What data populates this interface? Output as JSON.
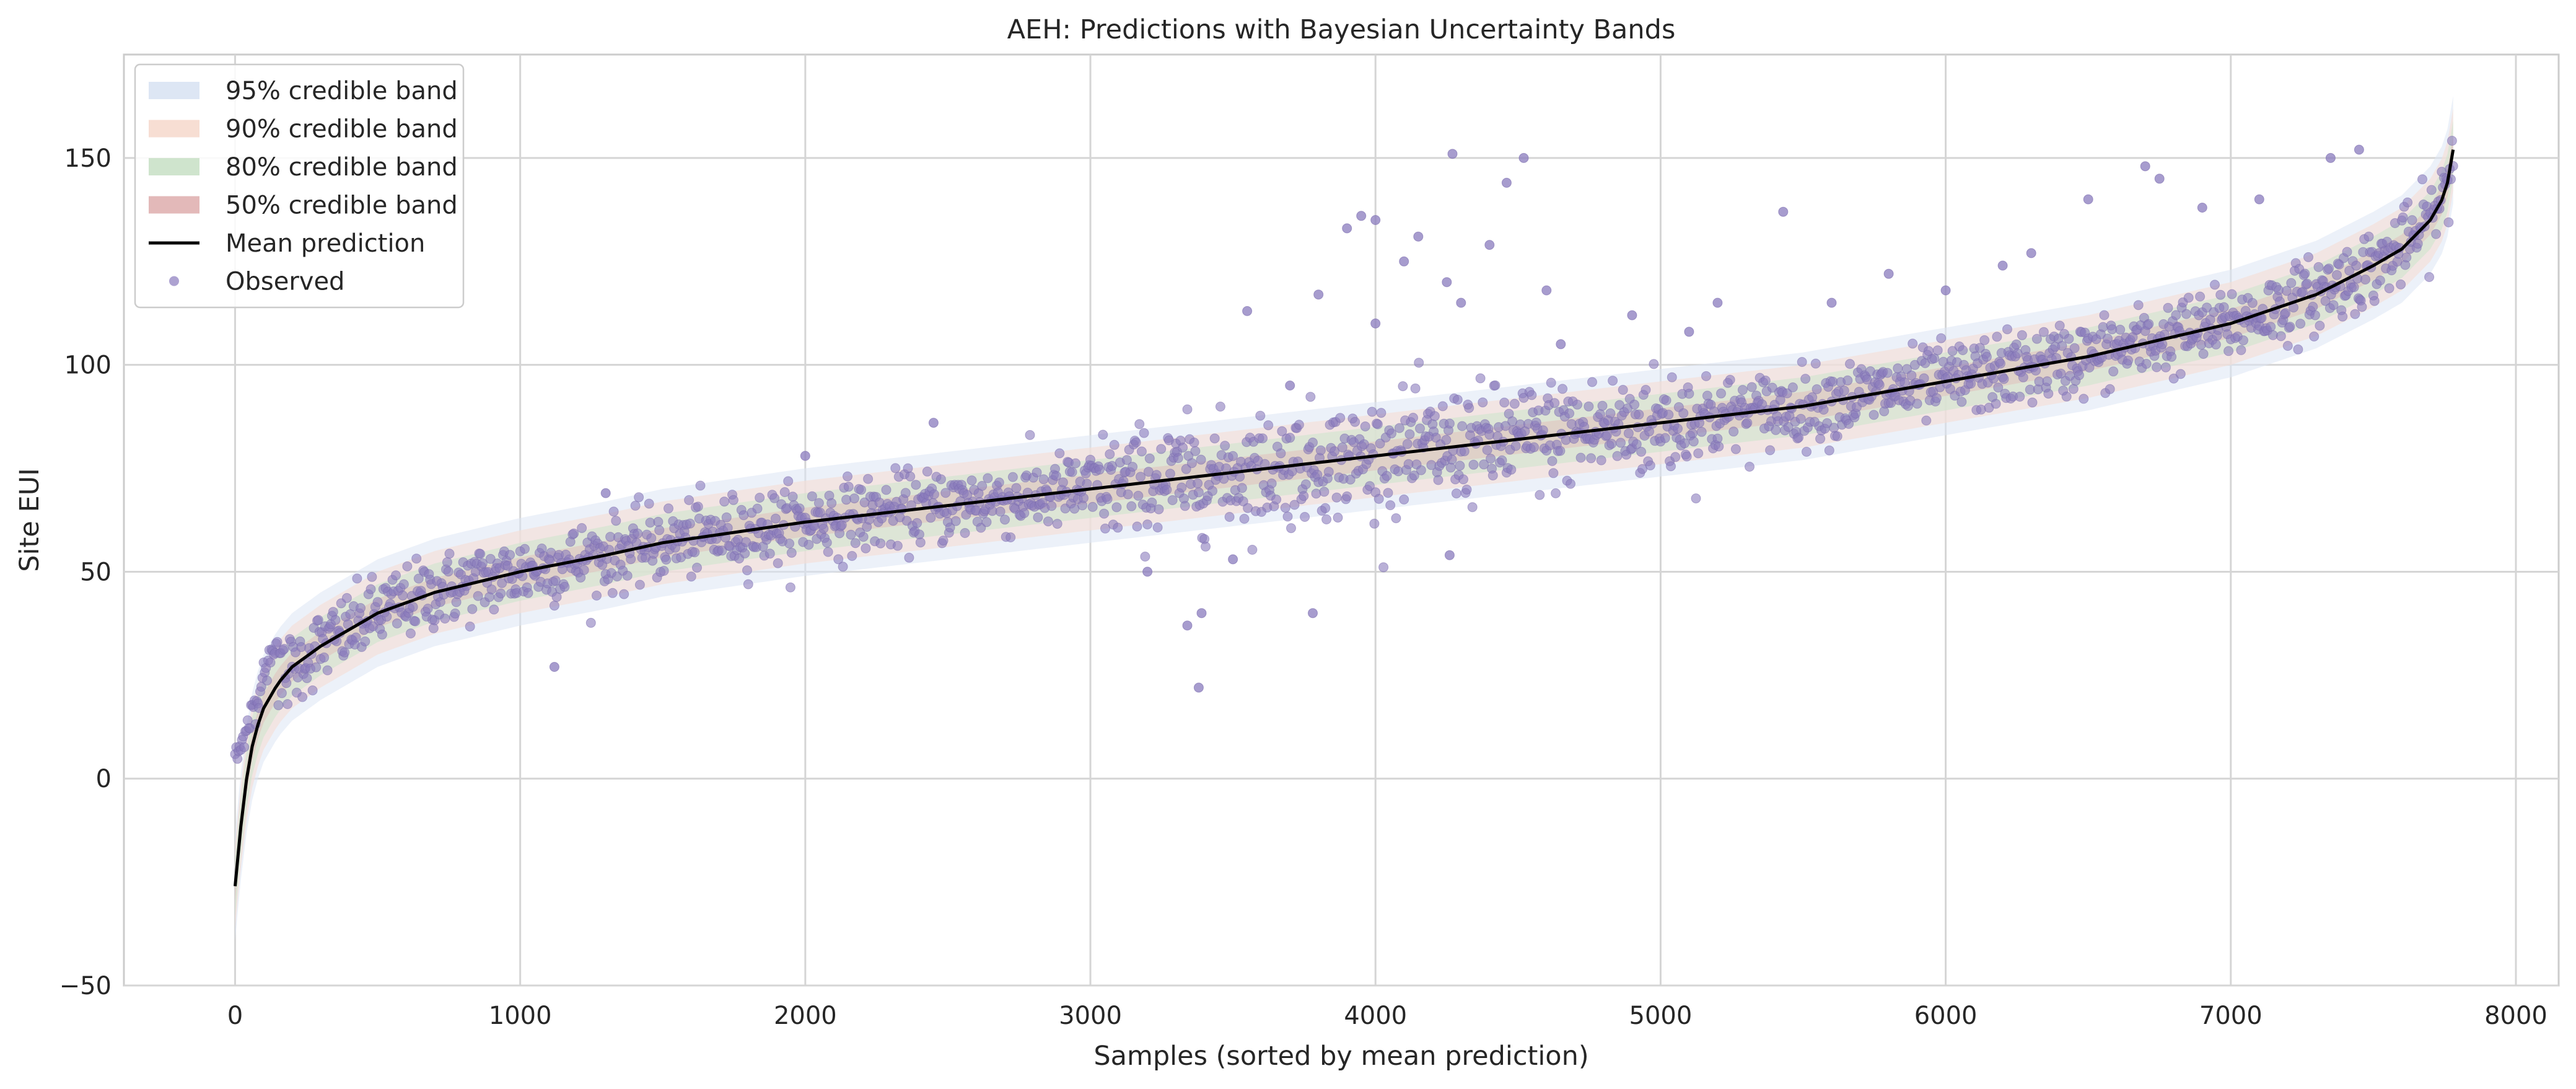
{
  "chart_data": {
    "type": "scatter",
    "title": "AEH: Predictions with Bayesian Uncertainty Bands",
    "xlabel": "Samples (sorted by mean prediction)",
    "ylabel": "Site EUI",
    "xlim": [
      -390,
      8150
    ],
    "ylim": [
      -50,
      175
    ],
    "x_ticks": [
      0,
      1000,
      2000,
      3000,
      4000,
      5000,
      6000,
      7000,
      8000
    ],
    "y_ticks": [
      -50,
      0,
      50,
      100,
      150
    ],
    "grid": true,
    "legend_position": "upper left",
    "legend": [
      {
        "label": "95% credible band",
        "kind": "band",
        "color": "#dde6f4"
      },
      {
        "label": "90% credible band",
        "kind": "band",
        "color": "#f7ded3"
      },
      {
        "label": "80% credible band",
        "kind": "band",
        "color": "#cfe4cd"
      },
      {
        "label": "50% credible band",
        "kind": "band",
        "color": "#e3b9b9"
      },
      {
        "label": "Mean prediction",
        "kind": "line",
        "color": "#000000"
      },
      {
        "label": "Observed",
        "kind": "marker",
        "color": "#8a7bbd"
      }
    ],
    "mean_prediction": {
      "x": [
        0,
        25,
        50,
        75,
        100,
        150,
        200,
        300,
        400,
        500,
        700,
        1000,
        1300,
        1500,
        2000,
        2500,
        3000,
        3500,
        4000,
        4500,
        5000,
        5500,
        6000,
        6500,
        7000,
        7300,
        7500,
        7600,
        7700,
        7750,
        7770,
        7780
      ],
      "y": [
        -26,
        -8,
        5,
        12,
        17,
        23,
        27,
        32,
        36,
        40,
        45,
        50,
        54,
        57,
        62,
        66,
        70,
        74,
        78,
        82,
        86,
        90,
        96,
        102,
        110,
        117,
        124,
        128,
        135,
        141,
        147,
        152
      ]
    },
    "bands": [
      {
        "level": "95%",
        "half_width": 13,
        "color": "#dde6f4",
        "opacity": 0.55
      },
      {
        "level": "90%",
        "half_width": 10,
        "color": "#f7ded3",
        "opacity": 0.6
      },
      {
        "level": "80%",
        "half_width": 7,
        "color": "#cfe4cd",
        "opacity": 0.6
      },
      {
        "level": "50%",
        "half_width": 3.5,
        "color": "#e3b9b9",
        "opacity": 0.45
      }
    ],
    "observed_scatter": {
      "n_points": 7780,
      "color": "#8a7bbd",
      "typical_noise": 4.5,
      "outliers": [
        {
          "x": 3380,
          "y": 22
        },
        {
          "x": 3390,
          "y": 40
        },
        {
          "x": 3340,
          "y": 37
        },
        {
          "x": 3780,
          "y": 40
        },
        {
          "x": 4270,
          "y": 151
        },
        {
          "x": 4520,
          "y": 150
        },
        {
          "x": 4460,
          "y": 144
        },
        {
          "x": 4000,
          "y": 135
        },
        {
          "x": 3950,
          "y": 136
        },
        {
          "x": 4150,
          "y": 131
        },
        {
          "x": 4400,
          "y": 129
        },
        {
          "x": 5430,
          "y": 137
        },
        {
          "x": 3900,
          "y": 133
        },
        {
          "x": 4250,
          "y": 120
        },
        {
          "x": 3800,
          "y": 117
        },
        {
          "x": 3550,
          "y": 113
        },
        {
          "x": 4300,
          "y": 115
        },
        {
          "x": 4600,
          "y": 118
        },
        {
          "x": 5200,
          "y": 115
        },
        {
          "x": 5800,
          "y": 122
        },
        {
          "x": 6300,
          "y": 127
        },
        {
          "x": 6900,
          "y": 138
        },
        {
          "x": 7100,
          "y": 140
        },
        {
          "x": 6700,
          "y": 148
        },
        {
          "x": 6750,
          "y": 145
        },
        {
          "x": 6500,
          "y": 140
        },
        {
          "x": 1120,
          "y": 27
        },
        {
          "x": 4260,
          "y": 54
        },
        {
          "x": 3500,
          "y": 53
        },
        {
          "x": 3200,
          "y": 50
        },
        {
          "x": 2450,
          "y": 86
        },
        {
          "x": 2000,
          "y": 78
        },
        {
          "x": 1300,
          "y": 69
        },
        {
          "x": 3700,
          "y": 95
        },
        {
          "x": 4000,
          "y": 110
        },
        {
          "x": 4100,
          "y": 125
        },
        {
          "x": 4650,
          "y": 105
        },
        {
          "x": 4900,
          "y": 112
        },
        {
          "x": 5100,
          "y": 108
        },
        {
          "x": 5600,
          "y": 115
        },
        {
          "x": 6000,
          "y": 118
        },
        {
          "x": 6200,
          "y": 124
        },
        {
          "x": 7350,
          "y": 150
        },
        {
          "x": 7450,
          "y": 152
        }
      ]
    }
  }
}
